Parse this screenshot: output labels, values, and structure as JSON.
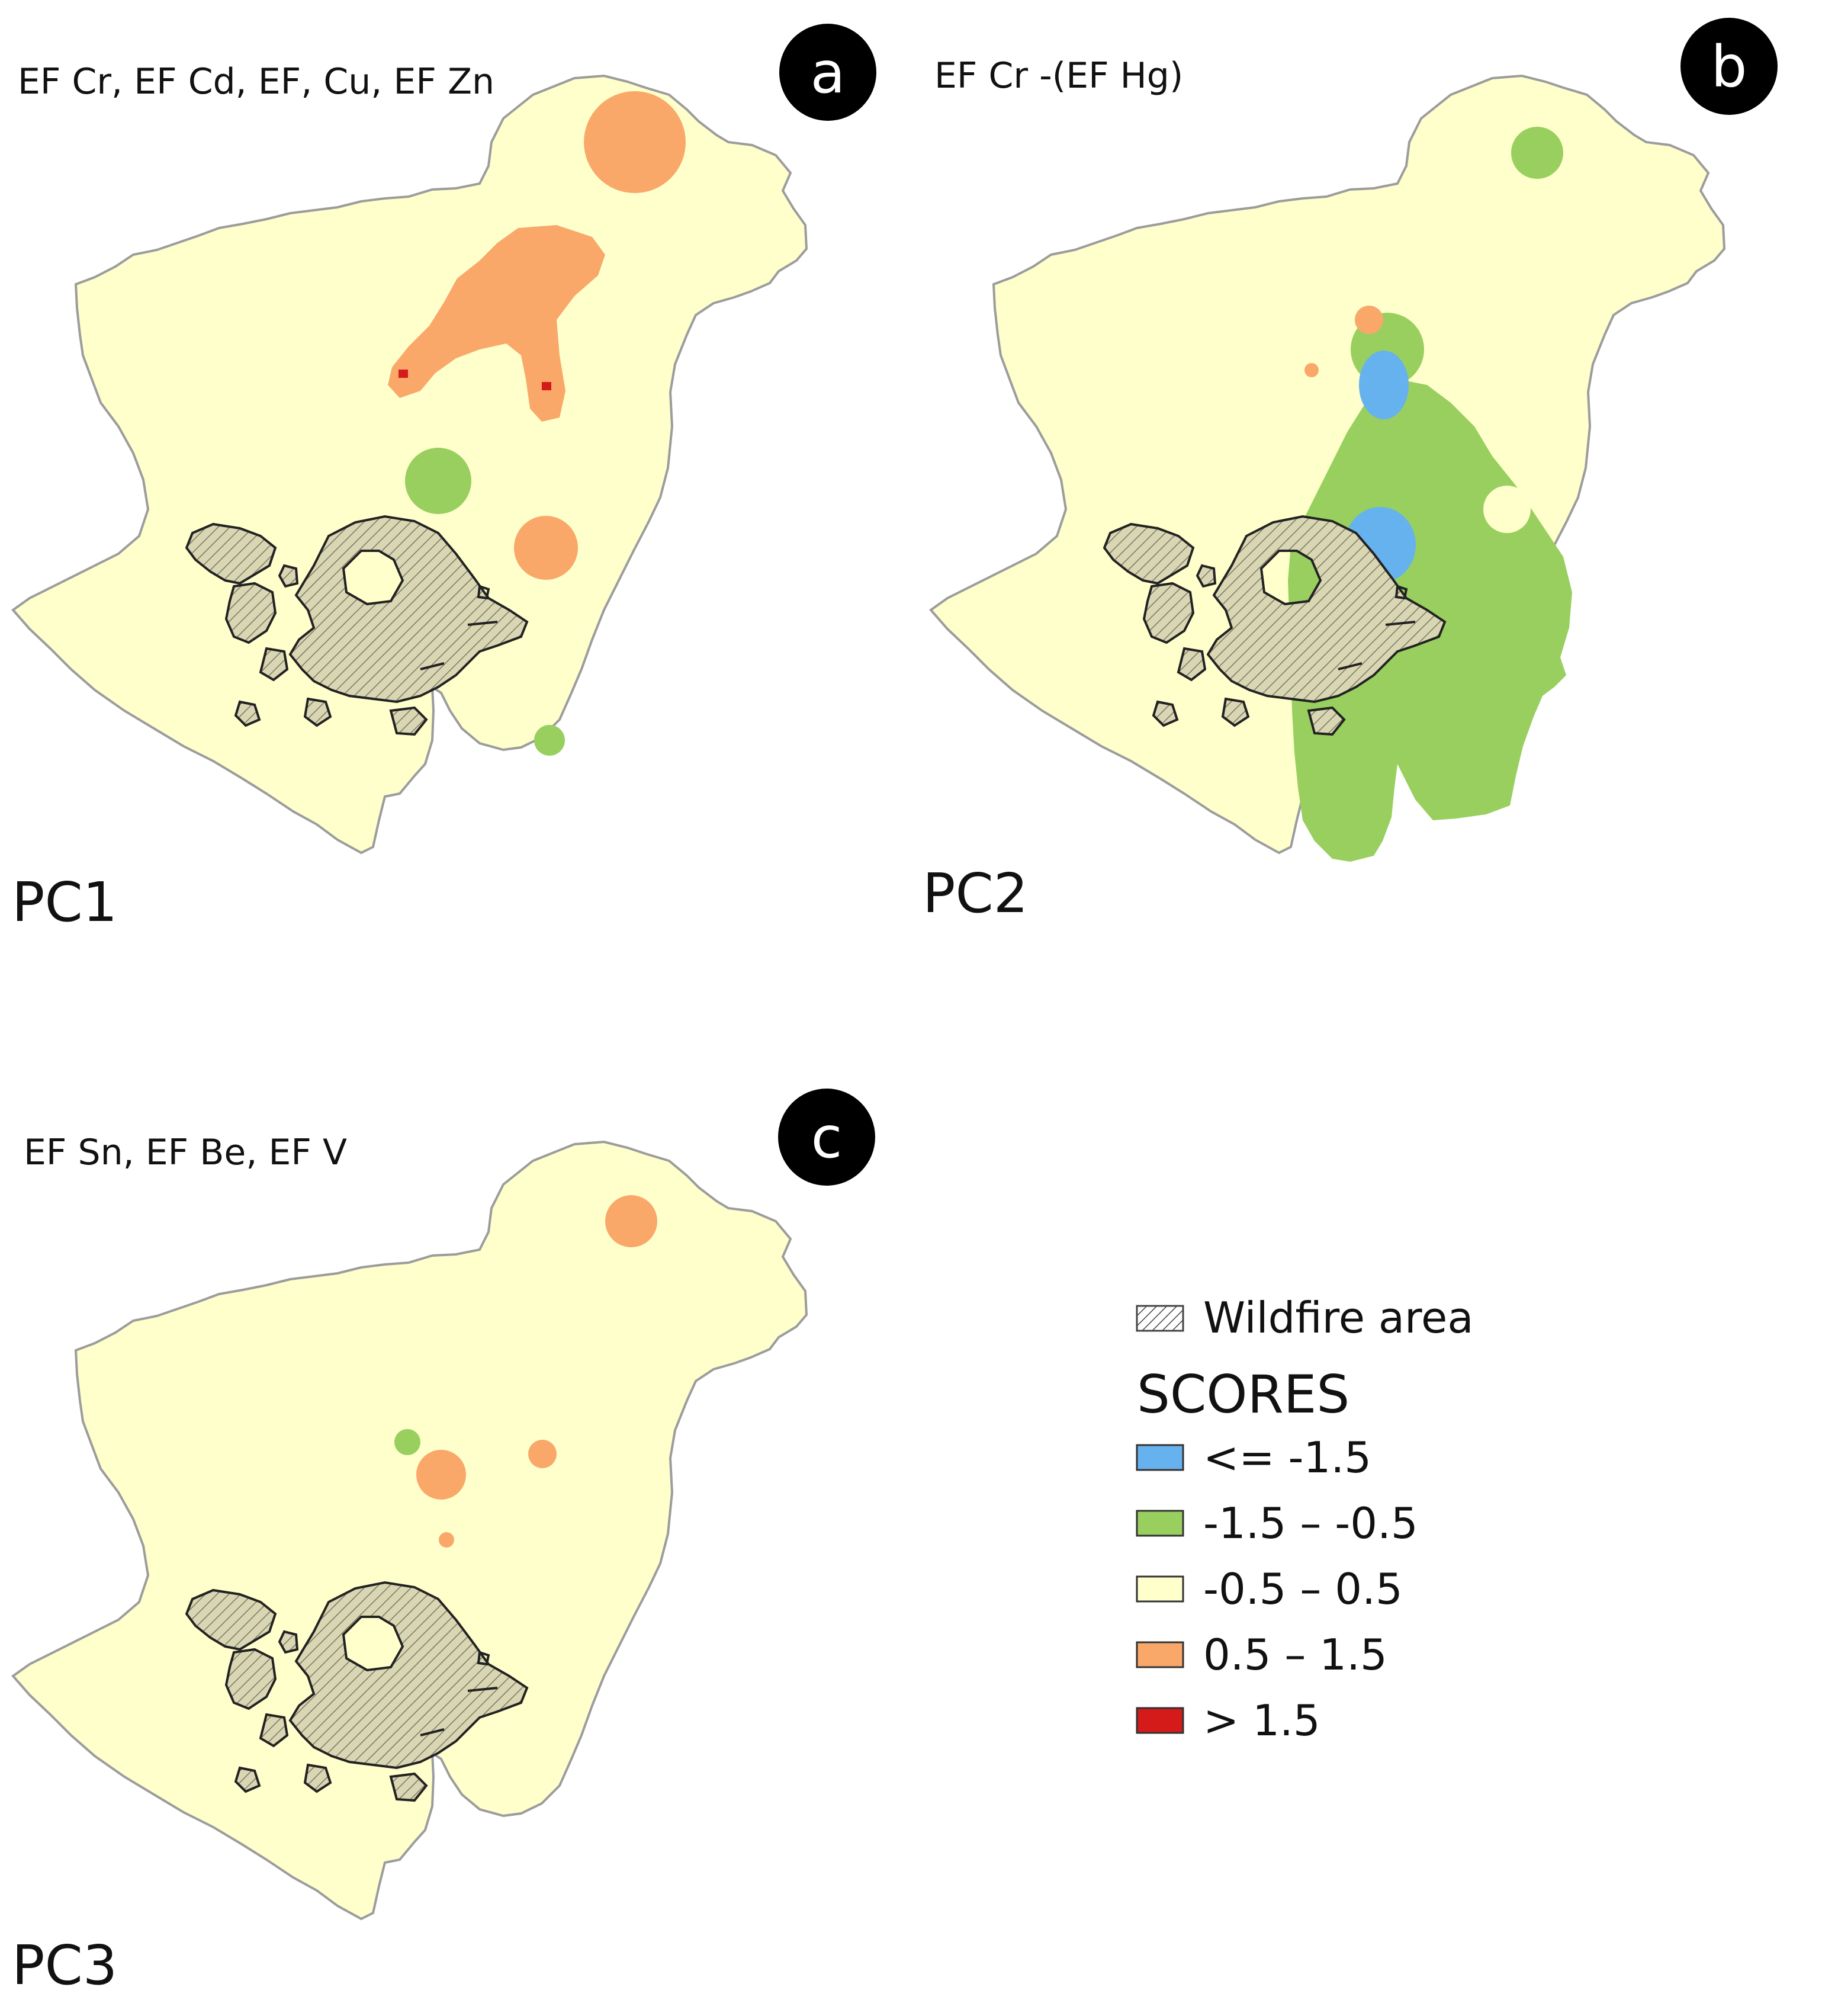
{
  "colors": {
    "blue": "#66b2ee",
    "green": "#98cf5f",
    "cream": "#ffffcc",
    "orange": "#f9a86a",
    "red": "#d51a1a",
    "outline": "#9c9c9c",
    "wildfire_fill": "#d9d6b4",
    "badge": "#000000"
  },
  "panels": [
    {
      "letter": "a",
      "pc_label": "PC1",
      "variables": "EF Cr, EF Cd, EF, Cu, EF Zn"
    },
    {
      "letter": "b",
      "pc_label": "PC2",
      "variables": "EF Cr -(EF Hg)"
    },
    {
      "letter": "c",
      "pc_label": "PC3",
      "variables": "EF Sn, EF Be, EF V"
    }
  ],
  "legend": {
    "wildfire_label": "Wildfire area",
    "scores_title": "SCORES",
    "classes": [
      {
        "label": "<= -1.5",
        "color": "#66b2ee"
      },
      {
        "label": "-1.5 – -0.5",
        "color": "#98cf5f"
      },
      {
        "label": "-0.5 – 0.5",
        "color": "#ffffcc"
      },
      {
        "label": "0.5 – 1.5",
        "color": "#f9a86a"
      },
      {
        "label": "> 1.5",
        "color": "#d51a1a"
      }
    ]
  }
}
